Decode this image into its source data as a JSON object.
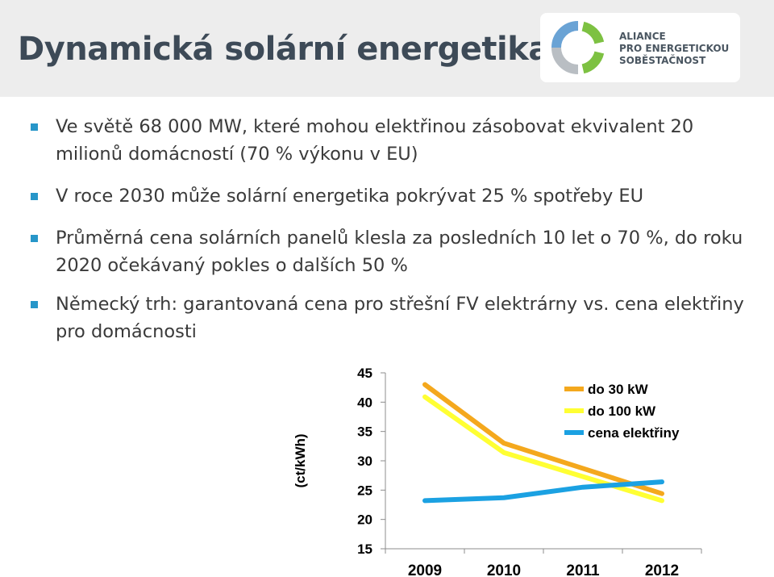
{
  "slide": {
    "title": "Dynamická solární energetika"
  },
  "logo": {
    "icon": "alliance-circle-logo",
    "lines": [
      "ALIANCE",
      "PRO ENERGETICKOU",
      "SOBĚSTAČNOST"
    ],
    "colors": {
      "blue": "#6aa3d5",
      "green": "#7dc142",
      "gray": "#b9bec3"
    }
  },
  "bullets": [
    "Ve světě 68 000 MW, které mohou elektřinou zásobovat ekvivalent 20 milionů domácností (70 % výkonu v EU)",
    "V roce 2030 může solární energetika pokrývat 25 % spotřeby EU",
    "Průměrná cena solárních panelů klesla za posledních 10 let o 70 %, do roku 2020 očekávaný pokles o dalších 50 %",
    "Německý trh: garantovaná cena pro střešní FV elektrárny vs. cena elektřiny pro domácnosti"
  ],
  "bullet_color": "#2796c9",
  "chart_data": {
    "type": "line",
    "x": [
      "2009",
      "2010",
      "2011",
      "2012"
    ],
    "ylabel": "(ct/kWh)",
    "ylim": [
      15,
      45
    ],
    "yticks": [
      15,
      20,
      25,
      30,
      35,
      40,
      45
    ],
    "grid": false,
    "legend_position": "top-right",
    "series": [
      {
        "name": "do 30 kW",
        "color": "#f4a81d",
        "values": [
          43.0,
          33.0,
          28.7,
          24.4
        ]
      },
      {
        "name": "do 100 kW",
        "color": "#ffff33",
        "values": [
          40.9,
          31.4,
          27.3,
          23.2
        ]
      },
      {
        "name": "cena elektřiny",
        "color": "#1ba1e2",
        "values": [
          23.2,
          23.7,
          25.5,
          26.4
        ]
      }
    ]
  }
}
